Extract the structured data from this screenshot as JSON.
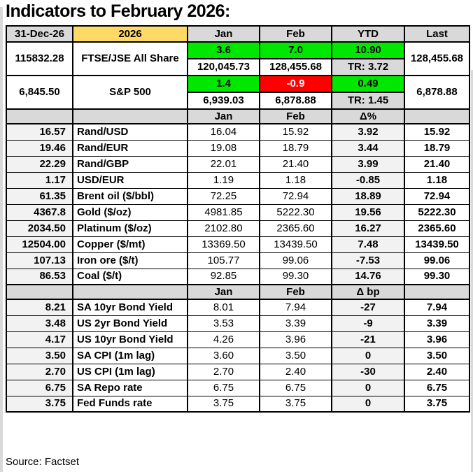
{
  "colors": {
    "positive_bg": "#00e800",
    "negative_bg": "#ff0000",
    "header_bg": "#d9d9d9",
    "year_accent_bg": "#ffd966",
    "stripe_bg": "#f2f2f2"
  },
  "chart_data": {
    "type": "table",
    "title": "Indicators to February 2026:",
    "source": "Source: Factset",
    "columns": [
      "31-Dec-26",
      "2026",
      "Jan",
      "Feb",
      "YTD",
      "Last"
    ],
    "index_rows": [
      {
        "start": "115832.28",
        "name": "FTSE/JSE All Share",
        "jan_pct": "3.6",
        "jan_dir": "pos",
        "feb_pct": "7.0",
        "feb_dir": "pos",
        "ytd_pct": "10.90",
        "ytd_dir": "pos",
        "jan_level": "120,045.73",
        "feb_level": "128,455.68",
        "tr": "TR: 3.72",
        "last": "128,455.68"
      },
      {
        "start": "6,845.50",
        "name": "S&P 500",
        "jan_pct": "1.4",
        "jan_dir": "pos",
        "feb_pct": "-0.9",
        "feb_dir": "neg",
        "ytd_pct": "0.49",
        "ytd_dir": "pos",
        "jan_level": "6,939.03",
        "feb_level": "6,878.88",
        "tr": "TR: 1.45",
        "last": "6,878.88"
      }
    ],
    "sections": [
      {
        "subheader": {
          "jan": "Jan",
          "feb": "Feb",
          "delta": "Δ%"
        },
        "rows": [
          [
            "16.57",
            "Rand/USD",
            "16.04",
            "15.92",
            "3.92",
            "15.92"
          ],
          [
            "19.46",
            "Rand/EUR",
            "19.08",
            "18.79",
            "3.44",
            "18.79"
          ],
          [
            "22.29",
            "Rand/GBP",
            "22.01",
            "21.40",
            "3.99",
            "21.40"
          ],
          [
            "1.17",
            "USD/EUR",
            "1.19",
            "1.18",
            "-0.85",
            "1.18"
          ],
          [
            "61.35",
            "Brent oil ($/bbl)",
            "72.25",
            "72.94",
            "18.89",
            "72.94"
          ],
          [
            "4367.8",
            "Gold ($/oz)",
            "4981.85",
            "5222.30",
            "19.56",
            "5222.30"
          ],
          [
            "2034.50",
            "Platinum ($/oz)",
            "2102.80",
            "2365.60",
            "16.27",
            "2365.60"
          ],
          [
            "12504.00",
            "Copper ($/mt)",
            "13369.50",
            "13439.50",
            "7.48",
            "13439.50"
          ],
          [
            "107.13",
            "Iron ore ($/t)",
            "105.77",
            "99.06",
            "-7.53",
            "99.06"
          ],
          [
            "86.53",
            "Coal ($/t)",
            "92.85",
            "99.30",
            "14.76",
            "99.30"
          ]
        ]
      },
      {
        "subheader": {
          "jan": "Jan",
          "feb": "Feb",
          "delta": "Δ bp"
        },
        "rows": [
          [
            "8.21",
            "SA 10yr Bond Yield",
            "8.01",
            "7.94",
            "-27",
            "7.94"
          ],
          [
            "3.48",
            "US 2yr Bond Yield",
            "3.53",
            "3.39",
            "-9",
            "3.39"
          ],
          [
            "4.17",
            "US 10yr Bond Yield",
            "4.26",
            "3.96",
            "-21",
            "3.96"
          ],
          [
            "3.50",
            "SA CPI (1m lag)",
            "3.60",
            "3.50",
            "0",
            "3.50"
          ],
          [
            "2.70",
            "US CPI (1m lag)",
            "2.70",
            "2.40",
            "-30",
            "2.40"
          ],
          [
            "6.75",
            "SA Repo rate",
            "6.75",
            "6.75",
            "0",
            "6.75"
          ],
          [
            "3.75",
            "Fed Funds rate",
            "3.75",
            "3.75",
            "0",
            "3.75"
          ]
        ]
      }
    ]
  }
}
